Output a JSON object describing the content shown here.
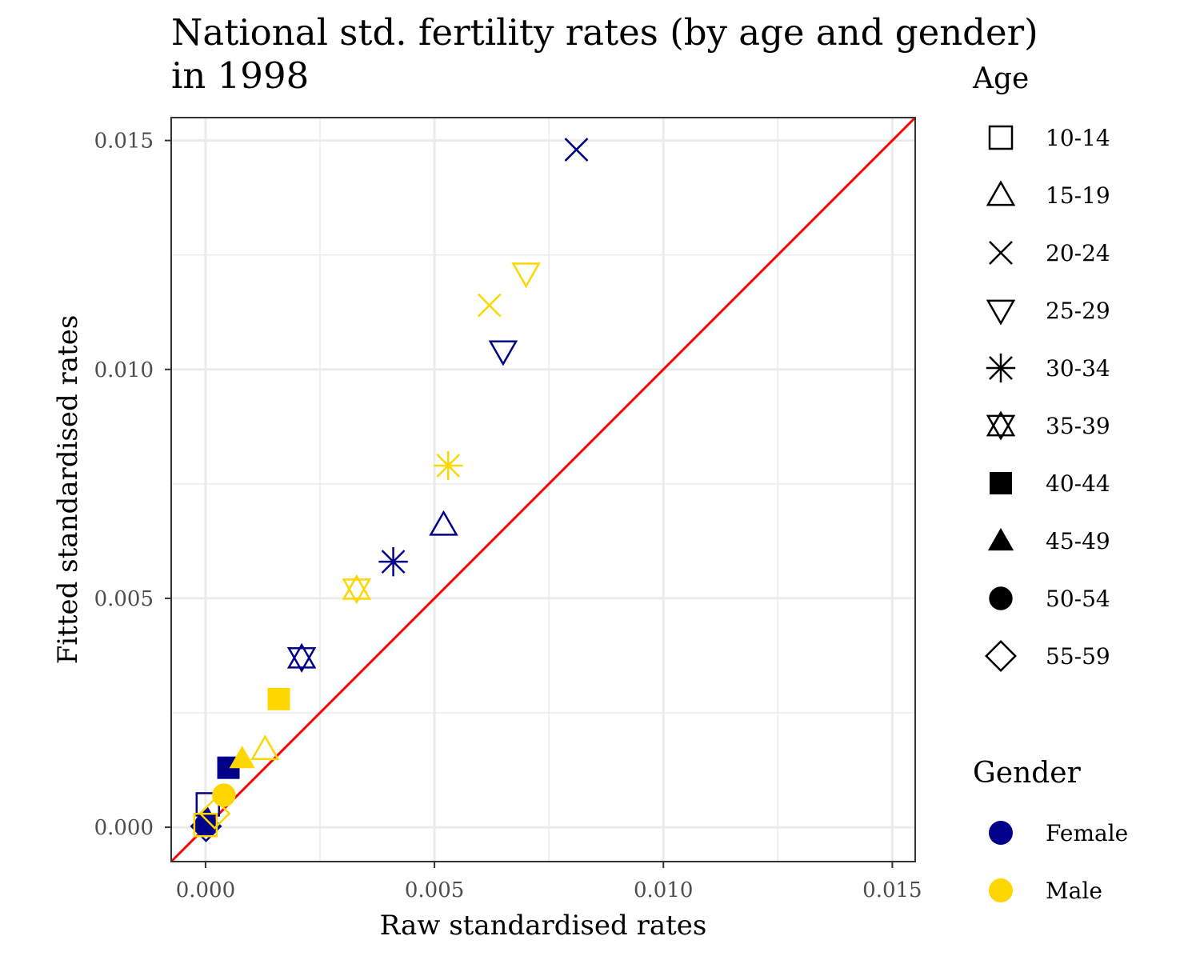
{
  "chart_data": {
    "type": "scatter",
    "title_lines": [
      "National std. fertility rates (by age and gender)",
      "in 1998"
    ],
    "xlabel": "Raw standardised rates",
    "ylabel": "Fitted standardised rates",
    "xlim": [
      -0.00075,
      0.0155
    ],
    "ylim": [
      -0.00075,
      0.0155
    ],
    "x_ticks": [
      {
        "value": 0.0,
        "label": "0.000"
      },
      {
        "value": 0.005,
        "label": "0.005"
      },
      {
        "value": 0.01,
        "label": "0.010"
      },
      {
        "value": 0.015,
        "label": "0.015"
      }
    ],
    "y_ticks": [
      {
        "value": 0.0,
        "label": "0.000"
      },
      {
        "value": 0.005,
        "label": "0.005"
      },
      {
        "value": 0.01,
        "label": "0.010"
      },
      {
        "value": 0.015,
        "label": "0.015"
      }
    ],
    "grid": true,
    "reference_line": {
      "type": "identity",
      "color": "#ff0000"
    },
    "legend_position": "right",
    "shape_legend": {
      "title": "Age",
      "entries": [
        {
          "label": "10-14",
          "shape": "square-open"
        },
        {
          "label": "15-19",
          "shape": "triangle-open"
        },
        {
          "label": "20-24",
          "shape": "cross"
        },
        {
          "label": "25-29",
          "shape": "triangle-down-open"
        },
        {
          "label": "30-34",
          "shape": "asterisk"
        },
        {
          "label": "35-39",
          "shape": "star-of-david"
        },
        {
          "label": "40-44",
          "shape": "square-filled"
        },
        {
          "label": "45-49",
          "shape": "triangle-filled"
        },
        {
          "label": "50-54",
          "shape": "circle-filled"
        },
        {
          "label": "55-59",
          "shape": "diamond-open"
        }
      ]
    },
    "color_legend": {
      "title": "Gender",
      "entries": [
        {
          "label": "Female",
          "color": "#00008b"
        },
        {
          "label": "Male",
          "color": "#ffd700"
        }
      ]
    },
    "series": [
      {
        "name": "Female",
        "color": "#00008b",
        "points": [
          {
            "age": "10-14",
            "x": 5e-05,
            "y": 0.0005
          },
          {
            "age": "15-19",
            "x": 0.0052,
            "y": 0.0066
          },
          {
            "age": "20-24",
            "x": 0.0081,
            "y": 0.0148
          },
          {
            "age": "25-29",
            "x": 0.0065,
            "y": 0.0104
          },
          {
            "age": "30-34",
            "x": 0.0041,
            "y": 0.0058
          },
          {
            "age": "35-39",
            "x": 0.0021,
            "y": 0.0037
          },
          {
            "age": "40-44",
            "x": 0.0005,
            "y": 0.0013
          },
          {
            "age": "45-49",
            "x": 3e-05,
            "y": 0.0002
          },
          {
            "age": "50-54",
            "x": 1e-05,
            "y": 5e-05
          },
          {
            "age": "55-59",
            "x": 1e-05,
            "y": 2e-05
          }
        ]
      },
      {
        "name": "Male",
        "color": "#ffd700",
        "points": [
          {
            "age": "10-14",
            "x": 0.0,
            "y": 5e-05
          },
          {
            "age": "15-19",
            "x": 0.0013,
            "y": 0.0017
          },
          {
            "age": "20-24",
            "x": 0.0062,
            "y": 0.0114
          },
          {
            "age": "25-29",
            "x": 0.007,
            "y": 0.0121
          },
          {
            "age": "30-34",
            "x": 0.0053,
            "y": 0.0079
          },
          {
            "age": "35-39",
            "x": 0.0033,
            "y": 0.0052
          },
          {
            "age": "40-44",
            "x": 0.0016,
            "y": 0.0028
          },
          {
            "age": "45-49",
            "x": 0.0008,
            "y": 0.0015
          },
          {
            "age": "50-54",
            "x": 0.0004,
            "y": 0.0007
          },
          {
            "age": "55-59",
            "x": 0.0002,
            "y": 0.0003
          }
        ]
      }
    ]
  }
}
